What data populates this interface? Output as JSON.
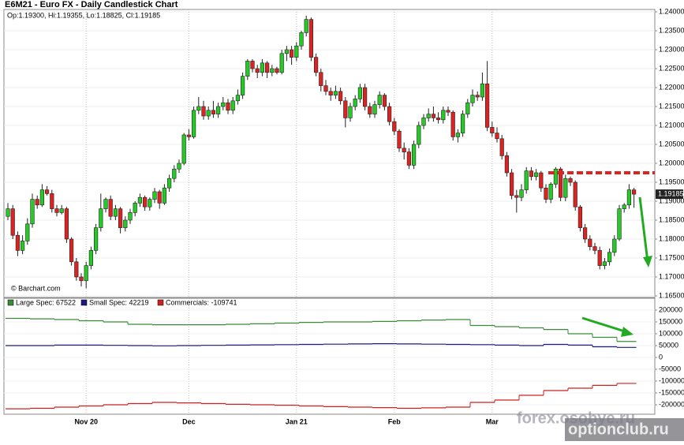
{
  "chart_data": [
    {
      "type": "candlestick",
      "title": "E6M21 - Euro FX - Daily Candlestick Chart",
      "info": "Op:1.19300, Hi:1.19355, Lo:1.18825, Cl:1.19185",
      "source": "© Barchart.com",
      "up_color": "#22cc22",
      "down_color": "#dd2222",
      "grid": true,
      "ylim": [
        1.165,
        1.24
      ],
      "yticks": [
        {
          "value": 1.165,
          "label": "1.16500"
        },
        {
          "value": 1.17,
          "label": "1.17000"
        },
        {
          "value": 1.175,
          "label": "1.17500"
        },
        {
          "value": 1.18,
          "label": "1.18000"
        },
        {
          "value": 1.185,
          "label": "1.18500"
        },
        {
          "value": 1.19,
          "label": "1.19000"
        },
        {
          "value": 1.195,
          "label": "1.19500"
        },
        {
          "value": 1.2,
          "label": "1.20000"
        },
        {
          "value": 1.205,
          "label": "1.20500"
        },
        {
          "value": 1.21,
          "label": "1.21000"
        },
        {
          "value": 1.215,
          "label": "1.21500"
        },
        {
          "value": 1.22,
          "label": "1.22000"
        },
        {
          "value": 1.225,
          "label": "1.22500"
        },
        {
          "value": 1.23,
          "label": "1.23000"
        },
        {
          "value": 1.235,
          "label": "1.23500"
        },
        {
          "value": 1.24,
          "label": "1.24000"
        }
      ],
      "categories": [
        null,
        null,
        null,
        null,
        null,
        null,
        null,
        null,
        null,
        null,
        null,
        null,
        null,
        null,
        null,
        null,
        "Nov 20",
        null,
        null,
        null,
        null,
        null,
        null,
        null,
        null,
        null,
        null,
        null,
        null,
        null,
        null,
        null,
        null,
        null,
        null,
        null,
        null,
        "Dec",
        null,
        null,
        null,
        null,
        null,
        null,
        null,
        null,
        null,
        null,
        null,
        null,
        null,
        null,
        null,
        null,
        null,
        null,
        null,
        null,
        null,
        "Jan 21",
        null,
        null,
        null,
        null,
        null,
        null,
        null,
        null,
        null,
        null,
        null,
        null,
        null,
        null,
        null,
        null,
        null,
        null,
        null,
        "Feb",
        null,
        null,
        null,
        null,
        null,
        null,
        null,
        null,
        null,
        null,
        null,
        null,
        null,
        null,
        null,
        null,
        null,
        null,
        null,
        "Mar",
        null,
        null,
        null,
        null,
        null,
        null,
        null,
        null,
        null,
        null,
        null,
        null,
        null,
        null,
        null,
        null,
        null,
        null,
        null,
        null,
        null,
        null,
        null,
        null,
        null,
        null,
        null,
        null,
        null
      ],
      "ohlc": [
        [
          1.186,
          1.1895,
          1.185,
          1.188
        ],
        [
          1.188,
          1.189,
          1.18,
          1.181
        ],
        [
          1.181,
          1.182,
          1.1755,
          1.177
        ],
        [
          1.177,
          1.181,
          1.176,
          1.1795
        ],
        [
          1.1795,
          1.1855,
          1.1785,
          1.184
        ],
        [
          1.184,
          1.192,
          1.183,
          1.1905
        ],
        [
          1.1905,
          1.1915,
          1.188,
          1.189
        ],
        [
          1.189,
          1.1945,
          1.1885,
          1.193
        ],
        [
          1.193,
          1.194,
          1.1915,
          1.192
        ],
        [
          1.192,
          1.193,
          1.187,
          1.188
        ],
        [
          1.188,
          1.189,
          1.186,
          1.187
        ],
        [
          1.187,
          1.189,
          1.1865,
          1.188
        ],
        [
          1.188,
          1.1885,
          1.179,
          1.18
        ],
        [
          1.18,
          1.1805,
          1.173,
          1.174
        ],
        [
          1.174,
          1.175,
          1.169,
          1.17
        ],
        [
          1.17,
          1.171,
          1.1675,
          1.169
        ],
        [
          1.169,
          1.174,
          1.167,
          1.173
        ],
        [
          1.173,
          1.178,
          1.172,
          1.177
        ],
        [
          1.177,
          1.184,
          1.176,
          1.183
        ],
        [
          1.183,
          1.192,
          1.182,
          1.188
        ],
        [
          1.188,
          1.191,
          1.187,
          1.1905
        ],
        [
          1.1905,
          1.1915,
          1.185,
          1.186
        ],
        [
          1.186,
          1.189,
          1.185,
          1.188
        ],
        [
          1.188,
          1.1885,
          1.1815,
          1.183
        ],
        [
          1.183,
          1.186,
          1.182,
          1.185
        ],
        [
          1.185,
          1.188,
          1.184,
          1.187
        ],
        [
          1.187,
          1.19,
          1.186,
          1.1895
        ],
        [
          1.1895,
          1.192,
          1.1885,
          1.191
        ],
        [
          1.191,
          1.1915,
          1.1875,
          1.1885
        ],
        [
          1.1885,
          1.191,
          1.1875,
          1.1905
        ],
        [
          1.1905,
          1.1935,
          1.1895,
          1.1925
        ],
        [
          1.1925,
          1.193,
          1.188,
          1.1895
        ],
        [
          1.1895,
          1.1945,
          1.189,
          1.1935
        ],
        [
          1.1935,
          1.197,
          1.1925,
          1.196
        ],
        [
          1.196,
          1.1995,
          1.195,
          1.1985
        ],
        [
          1.1985,
          1.201,
          1.1975,
          1.2
        ],
        [
          1.2,
          1.208,
          1.1995,
          1.2075
        ],
        [
          1.2075,
          1.209,
          1.206,
          1.207
        ],
        [
          1.207,
          1.215,
          1.2065,
          1.214
        ],
        [
          1.214,
          1.2175,
          1.213,
          1.215
        ],
        [
          1.215,
          1.2165,
          1.2115,
          1.2125
        ],
        [
          1.2125,
          1.215,
          1.2115,
          1.214
        ],
        [
          1.214,
          1.2165,
          1.212,
          1.213
        ],
        [
          1.213,
          1.216,
          1.212,
          1.215
        ],
        [
          1.215,
          1.2175,
          1.214,
          1.216
        ],
        [
          1.216,
          1.217,
          1.213,
          1.214
        ],
        [
          1.214,
          1.2175,
          1.213,
          1.2165
        ],
        [
          1.2165,
          1.2195,
          1.2155,
          1.218
        ],
        [
          1.218,
          1.224,
          1.217,
          1.223
        ],
        [
          1.223,
          1.2275,
          1.222,
          1.227
        ],
        [
          1.227,
          1.2275,
          1.224,
          1.225
        ],
        [
          1.225,
          1.226,
          1.2225,
          1.224
        ],
        [
          1.224,
          1.2275,
          1.223,
          1.2265
        ],
        [
          1.2265,
          1.227,
          1.2225,
          1.224
        ],
        [
          1.224,
          1.226,
          1.223,
          1.225
        ],
        [
          1.225,
          1.2255,
          1.2235,
          1.224
        ],
        [
          1.224,
          1.23,
          1.2235,
          1.229
        ],
        [
          1.229,
          1.231,
          1.227,
          1.23
        ],
        [
          1.23,
          1.231,
          1.226,
          1.228
        ],
        [
          1.228,
          1.232,
          1.227,
          1.231
        ],
        [
          1.231,
          1.235,
          1.23,
          1.2345
        ],
        [
          1.2345,
          1.239,
          1.2335,
          1.238
        ],
        [
          1.238,
          1.2385,
          1.227,
          1.228
        ],
        [
          1.228,
          1.229,
          1.223,
          1.224
        ],
        [
          1.224,
          1.225,
          1.219,
          1.2205
        ],
        [
          1.2205,
          1.222,
          1.218,
          1.219
        ],
        [
          1.219,
          1.22,
          1.2165,
          1.218
        ],
        [
          1.218,
          1.2205,
          1.217,
          1.219
        ],
        [
          1.219,
          1.22,
          1.2155,
          1.2165
        ],
        [
          1.2165,
          1.2175,
          1.2095,
          1.212
        ],
        [
          1.212,
          1.216,
          1.211,
          1.215
        ],
        [
          1.215,
          1.218,
          1.214,
          1.217
        ],
        [
          1.217,
          1.221,
          1.216,
          1.22
        ],
        [
          1.22,
          1.221,
          1.214,
          1.215
        ],
        [
          1.215,
          1.216,
          1.212,
          1.213
        ],
        [
          1.213,
          1.2165,
          1.212,
          1.2155
        ],
        [
          1.2155,
          1.219,
          1.2145,
          1.218
        ],
        [
          1.218,
          1.2185,
          1.214,
          1.215
        ],
        [
          1.215,
          1.216,
          1.21,
          1.211
        ],
        [
          1.211,
          1.212,
          1.2075,
          1.2085
        ],
        [
          1.2085,
          1.209,
          1.203,
          1.204
        ],
        [
          1.204,
          1.2055,
          1.201,
          1.203
        ],
        [
          1.203,
          1.204,
          1.1985,
          1.1995
        ],
        [
          1.1995,
          1.206,
          1.1985,
          1.205
        ],
        [
          1.205,
          1.211,
          1.204,
          1.21
        ],
        [
          1.21,
          1.213,
          1.209,
          1.212
        ],
        [
          1.212,
          1.2145,
          1.211,
          1.213
        ],
        [
          1.213,
          1.215,
          1.211,
          1.212
        ],
        [
          1.212,
          1.2135,
          1.2105,
          1.2115
        ],
        [
          1.2115,
          1.215,
          1.2105,
          1.214
        ],
        [
          1.214,
          1.215,
          1.2125,
          1.2135
        ],
        [
          1.2135,
          1.214,
          1.206,
          1.207
        ],
        [
          1.207,
          1.209,
          1.2055,
          1.208
        ],
        [
          1.208,
          1.214,
          1.207,
          1.213
        ],
        [
          1.213,
          1.217,
          1.212,
          1.216
        ],
        [
          1.216,
          1.2195,
          1.215,
          1.218
        ],
        [
          1.218,
          1.219,
          1.2165,
          1.2175
        ],
        [
          1.2175,
          1.224,
          1.2165,
          1.221
        ],
        [
          1.221,
          1.227,
          1.2085,
          1.2095
        ],
        [
          1.2095,
          1.211,
          1.207,
          1.208
        ],
        [
          1.208,
          1.2095,
          1.2055,
          1.2065
        ],
        [
          1.2065,
          1.2075,
          1.201,
          1.202
        ],
        [
          1.202,
          1.203,
          1.1965,
          1.1975
        ],
        [
          1.1975,
          1.1985,
          1.1905,
          1.1915
        ],
        [
          1.1915,
          1.193,
          1.187,
          1.191
        ],
        [
          1.191,
          1.1945,
          1.19,
          1.193
        ],
        [
          1.193,
          1.199,
          1.192,
          1.198
        ],
        [
          1.198,
          1.199,
          1.1955,
          1.1965
        ],
        [
          1.1965,
          1.1985,
          1.1955,
          1.1975
        ],
        [
          1.1975,
          1.198,
          1.1925,
          1.1935
        ],
        [
          1.1935,
          1.1945,
          1.1895,
          1.1905
        ],
        [
          1.1905,
          1.195,
          1.1895,
          1.1945
        ],
        [
          1.1945,
          1.199,
          1.1935,
          1.1985
        ],
        [
          1.1985,
          1.199,
          1.19,
          1.191
        ],
        [
          1.191,
          1.197,
          1.19,
          1.196
        ],
        [
          1.196,
          1.1965,
          1.194,
          1.195
        ],
        [
          1.195,
          1.1955,
          1.1875,
          1.1885
        ],
        [
          1.1885,
          1.189,
          1.182,
          1.183
        ],
        [
          1.183,
          1.184,
          1.179,
          1.18
        ],
        [
          1.18,
          1.181,
          1.177,
          1.178
        ],
        [
          1.178,
          1.179,
          1.176,
          1.177
        ],
        [
          1.177,
          1.178,
          1.172,
          1.173
        ],
        [
          1.173,
          1.175,
          1.172,
          1.174
        ],
        [
          1.174,
          1.1775,
          1.173,
          1.1765
        ],
        [
          1.1765,
          1.181,
          1.1755,
          1.18
        ],
        [
          1.18,
          1.189,
          1.1795,
          1.188
        ],
        [
          1.188,
          1.1895,
          1.187,
          1.189
        ],
        [
          1.189,
          1.1945,
          1.188,
          1.193
        ],
        [
          1.193,
          1.19355,
          1.18825,
          1.19185
        ]
      ],
      "annotations": [
        {
          "type": "level",
          "value": 1.1975,
          "color": "#dd2222"
        }
      ]
    },
    {
      "type": "line",
      "grid": true,
      "ylim": [
        -200000,
        200000
      ],
      "yticks": [
        200000,
        150000,
        100000,
        50000,
        0,
        -50000,
        -100000,
        -150000,
        -200000
      ],
      "series": [
        {
          "name": "Large Spec: 67522",
          "color": "#3a8a3a",
          "values": [
            165000,
            163000,
            160000,
            155000,
            150000,
            140000,
            138000,
            138000,
            138000,
            140000,
            142000,
            145000,
            148000,
            150000,
            150000,
            152000,
            155000,
            158000,
            160000,
            135000,
            130000,
            125000,
            118000,
            100000,
            85000,
            67522
          ]
        },
        {
          "name": "Small Spec: 42219",
          "color": "#1a1a80",
          "values": [
            50000,
            50000,
            52000,
            52000,
            51000,
            50000,
            49000,
            50000,
            51000,
            52000,
            53000,
            54000,
            55000,
            56000,
            57000,
            58000,
            57000,
            56000,
            55000,
            54000,
            52000,
            50000,
            55000,
            52000,
            45000,
            42219
          ]
        },
        {
          "name": "Commercials: -109741",
          "color": "#cc2222",
          "values": [
            -217000,
            -215000,
            -210000,
            -205000,
            -200000,
            -195000,
            -190000,
            -192000,
            -195000,
            -198000,
            -200000,
            -202000,
            -205000,
            -208000,
            -210000,
            -212000,
            -215000,
            -213000,
            -210000,
            -190000,
            -180000,
            -160000,
            -140000,
            -130000,
            -118000,
            -109741
          ]
        }
      ]
    }
  ],
  "watermarks": [
    "forex.osobye.ru",
    "optionclub.ru"
  ]
}
